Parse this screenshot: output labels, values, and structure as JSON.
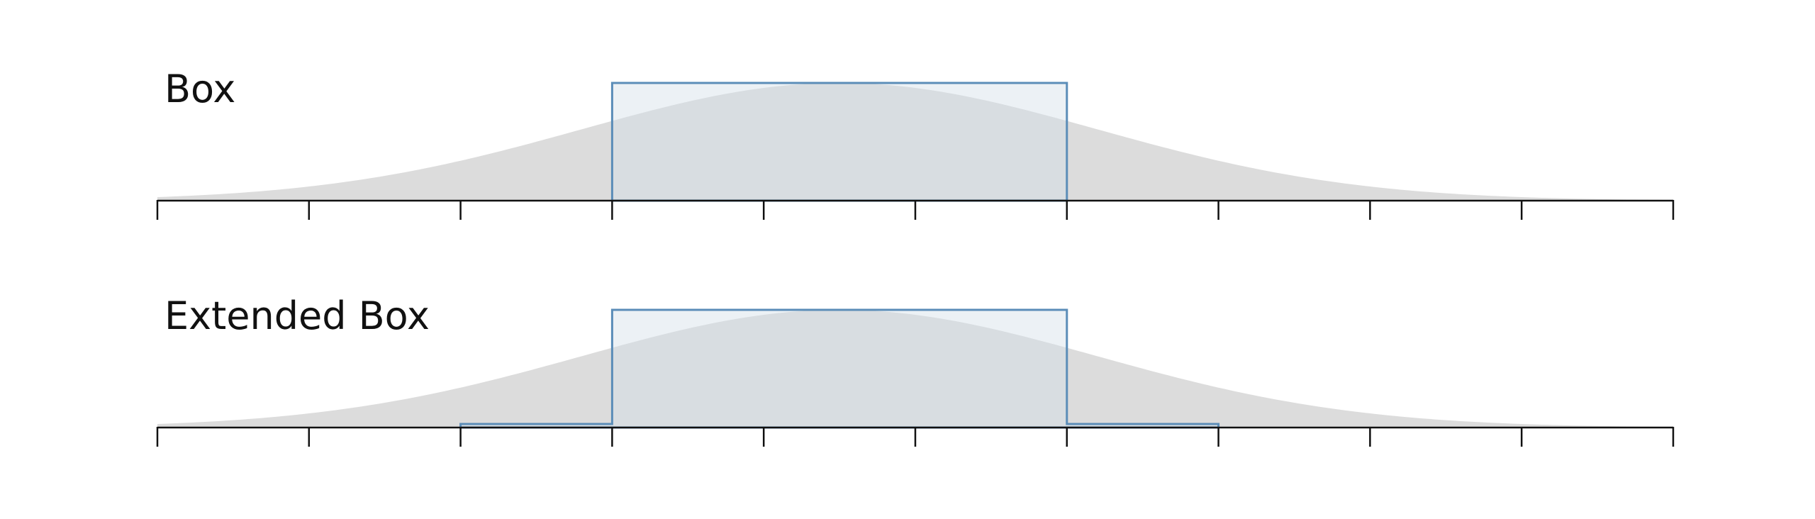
{
  "panels": [
    {
      "id": "box",
      "title": "Box",
      "kernel": [
        {
          "from": 3,
          "to": 6,
          "level": 1.0
        }
      ]
    },
    {
      "id": "extended-box",
      "title": "Extended Box",
      "kernel": [
        {
          "from": 2,
          "to": 3,
          "level": 0.03
        },
        {
          "from": 3,
          "to": 6,
          "level": 1.0
        },
        {
          "from": 6,
          "to": 7,
          "level": 0.03
        }
      ]
    }
  ],
  "axis": {
    "min": 0,
    "max": 10,
    "ticks": [
      0,
      1,
      2,
      3,
      4,
      5,
      6,
      7,
      8,
      9,
      10
    ]
  },
  "distribution": {
    "mean": 4.5,
    "sd": 1.7
  },
  "colors": {
    "curve": "#dcdcdc",
    "kernel_stroke": "#5b8db8",
    "kernel_fill": "#d2dee8",
    "axis": "#111111",
    "text": "#111111"
  }
}
